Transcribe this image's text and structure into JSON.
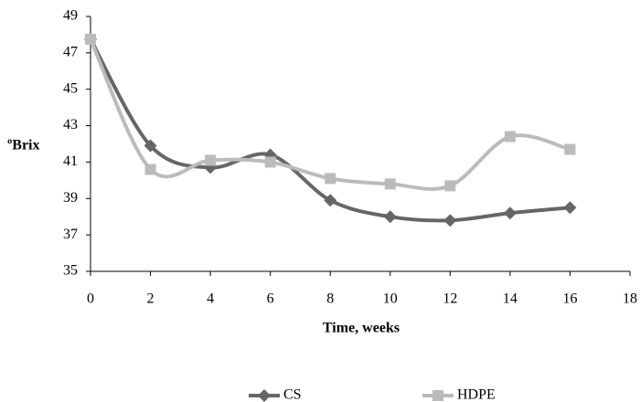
{
  "chart_data": {
    "type": "line",
    "x_label": "Time, weeks",
    "y_label": "ºBrix",
    "x": [
      0,
      2,
      4,
      6,
      8,
      10,
      12,
      14,
      16
    ],
    "series": [
      {
        "name": "CS",
        "color": "#666666",
        "marker": "diamond",
        "values": [
          47.75,
          41.9,
          40.7,
          41.4,
          38.9,
          38.0,
          37.8,
          38.2,
          38.5
        ]
      },
      {
        "name": "HDPE",
        "color": "#bbbbbb",
        "marker": "square",
        "values": [
          47.75,
          40.6,
          41.1,
          41.0,
          40.1,
          39.8,
          39.7,
          42.4,
          41.7
        ]
      }
    ],
    "xlim": [
      0,
      18
    ],
    "xticks": [
      0,
      2,
      4,
      6,
      8,
      10,
      12,
      14,
      16,
      18
    ],
    "ylim": [
      35,
      49
    ],
    "yticks": [
      35,
      37,
      39,
      41,
      43,
      45,
      47,
      49
    ],
    "smooth": true,
    "grid": false,
    "legend": "bottom"
  }
}
